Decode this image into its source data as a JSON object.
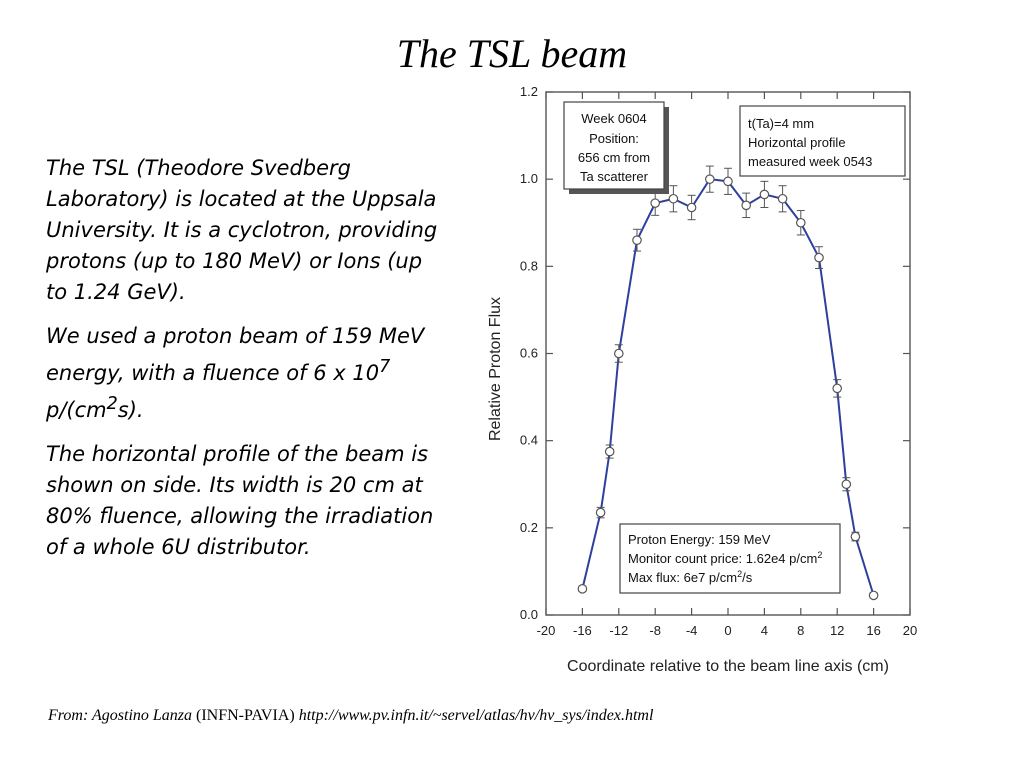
{
  "slide": {
    "title": "The TSL beam",
    "paragraphs": [
      {
        "text": "The TSL (Theodore Svedberg Laboratory) is located at the Uppsala University. It is a cyclotron, providing protons (up to 180 MeV) or Ions (up to 1.24 GeV)."
      },
      {
        "pre": "We used a proton beam of 159 MeV energy, with a fluence of  6 x 10",
        "sup1": "7",
        "mid": " p/(cm",
        "sup2": "2",
        "post": "s)."
      },
      {
        "text": "The horizontal profile of the beam is shown on side. Its width is 20 cm at 80%  fluence, allowing the irradiation of a whole 6U distributor."
      }
    ],
    "footer": {
      "from": "From:  Agostino Lanza",
      "org": " (INFN-PAVIA) ",
      "url": "http://www.pv.infn.it/~servel/atlas/hv/hv_sys/index.html"
    }
  },
  "chart_data": {
    "type": "line",
    "xlabel": "Coordinate relative to the beam line axis (cm)",
    "ylabel": "Relative Proton Flux",
    "xlim": [
      -20,
      20
    ],
    "ylim": [
      0.0,
      1.2
    ],
    "xticks": [
      -20,
      -16,
      -12,
      -8,
      -4,
      0,
      4,
      8,
      12,
      16,
      20
    ],
    "yticks": [
      "0.0",
      "0.2",
      "0.4",
      "0.6",
      "0.8",
      "1.0",
      "1.2"
    ],
    "line_color": "#2e3f9e",
    "series": [
      {
        "x": [
          -16,
          -14,
          -13,
          -12,
          -10,
          -8,
          -6,
          -4,
          -2,
          0,
          2,
          4,
          6,
          8,
          10,
          12,
          13,
          14,
          16
        ],
        "y": [
          0.06,
          0.235,
          0.375,
          0.6,
          0.86,
          0.945,
          0.955,
          0.935,
          1.0,
          0.995,
          0.94,
          0.965,
          0.955,
          0.9,
          0.82,
          0.52,
          0.3,
          0.18,
          0.045
        ],
        "err": [
          0.006,
          0.012,
          0.015,
          0.02,
          0.025,
          0.028,
          0.03,
          0.028,
          0.03,
          0.03,
          0.028,
          0.03,
          0.03,
          0.028,
          0.025,
          0.02,
          0.015,
          0.01,
          0.006
        ]
      }
    ],
    "annotations": {
      "week_box": [
        "Week 0604",
        "Position:",
        "656 cm from",
        "Ta scatterer"
      ],
      "profile_box": [
        "t(Ta)=4 mm",
        "Horizontal profile",
        "measured week 0543"
      ],
      "beam_box": {
        "line1": "Proton Energy: 159 MeV",
        "line2_pre": "Monitor count price: 1.62e4 p/cm",
        "line2_sup": "2",
        "line3_pre": "Max flux: 6e7 p/cm",
        "line3_sup": "2",
        "line3_post": "/s"
      }
    }
  }
}
